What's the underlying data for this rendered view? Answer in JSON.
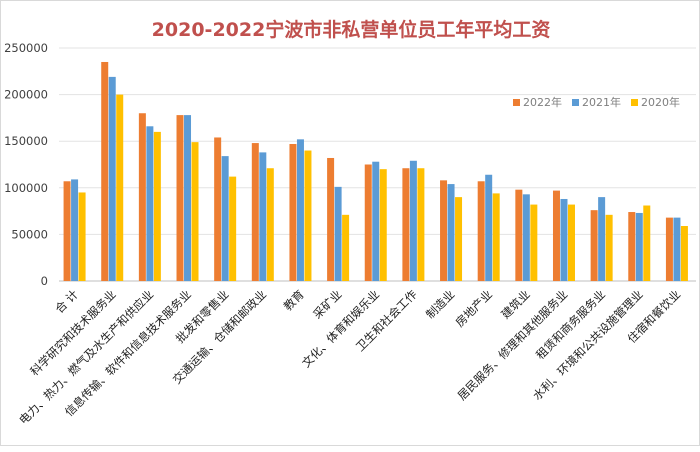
{
  "chart_data": {
    "type": "bar",
    "title": "2020-2022宁波市非私营单位员工年平均工资",
    "xlabel": "",
    "ylabel": "",
    "ylim": [
      0,
      250000
    ],
    "yticks": [
      "0",
      "50000",
      "100000",
      "150000",
      "200000",
      "250000"
    ],
    "grid": true,
    "legend_position": "top-right",
    "categories": [
      "合  计",
      "科学研究和技术服务业",
      "电力、热力、燃气及水生产和供应业",
      "信息传输、软件和信息技术服务业",
      "批发和零售业",
      "交通运输、仓储和邮政业",
      "教育",
      "采矿业",
      "文化、体育和娱乐业",
      "卫生和社会工作",
      "制造业",
      "房地产业",
      "建筑业",
      "居民服务、修理和其他服务业",
      "租赁和商务服务业",
      "水利、环境和公共设施管理业",
      "住宿和餐饮业"
    ],
    "series": [
      {
        "name": "2022年",
        "color": "#ed7d31",
        "values": [
          107000,
          235000,
          180000,
          178000,
          154000,
          148000,
          147000,
          132000,
          125000,
          121000,
          108000,
          107000,
          98000,
          97000,
          76000,
          74000,
          68000
        ]
      },
      {
        "name": "2021年",
        "color": "#5b9bd5",
        "values": [
          109000,
          219000,
          166000,
          178000,
          134000,
          138000,
          152000,
          101000,
          128000,
          129000,
          104000,
          114000,
          93000,
          88000,
          90000,
          73000,
          68000
        ]
      },
      {
        "name": "2020年",
        "color": "#ffc000",
        "values": [
          95000,
          200000,
          160000,
          149000,
          112000,
          121000,
          140000,
          71000,
          120000,
          121000,
          90000,
          94000,
          82000,
          82000,
          71000,
          81000,
          59000
        ]
      }
    ]
  }
}
